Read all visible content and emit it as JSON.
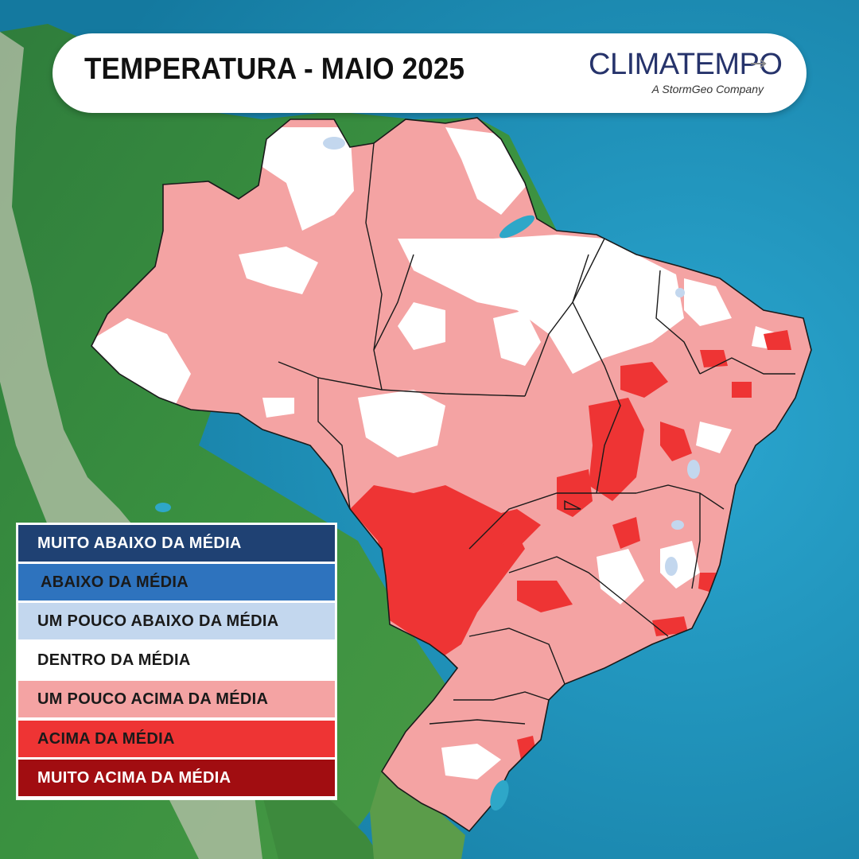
{
  "header": {
    "title": "TEMPERATURA - MAIO 2025",
    "brand_name": "CLIMATEMPO",
    "brand_tagline": "A StormGeo Company"
  },
  "legend": {
    "items": [
      {
        "label": "MUITO ABAIXO DA MÉDIA",
        "color": "#1f4173",
        "text_color": "#ffffff"
      },
      {
        "label": "ABAIXO DA MÉDIA",
        "color": "#2e73be",
        "text_color": "#1a1a1a"
      },
      {
        "label": "UM POUCO ABAIXO DA MÉDIA",
        "color": "#c3d7ee",
        "text_color": "#1a1a1a"
      },
      {
        "label": "DENTRO DA MÉDIA",
        "color": "#ffffff",
        "text_color": "#1a1a1a"
      },
      {
        "label": "UM POUCO ACIMA DA MÉDIA",
        "color": "#f4a3a3",
        "text_color": "#1a1a1a"
      },
      {
        "label": "ACIMA DA MÉDIA",
        "color": "#ee3434",
        "text_color": "#1a1a1a"
      },
      {
        "label": "MUITO ACIMA DA MÉDIA",
        "color": "#a10d11",
        "text_color": "#ffffff"
      }
    ]
  },
  "map": {
    "ocean_color": "#1b8fb6",
    "land_color": "#3f8f3f",
    "andes_color": "#cfd3c8",
    "border_color": "#1a1a1a"
  }
}
